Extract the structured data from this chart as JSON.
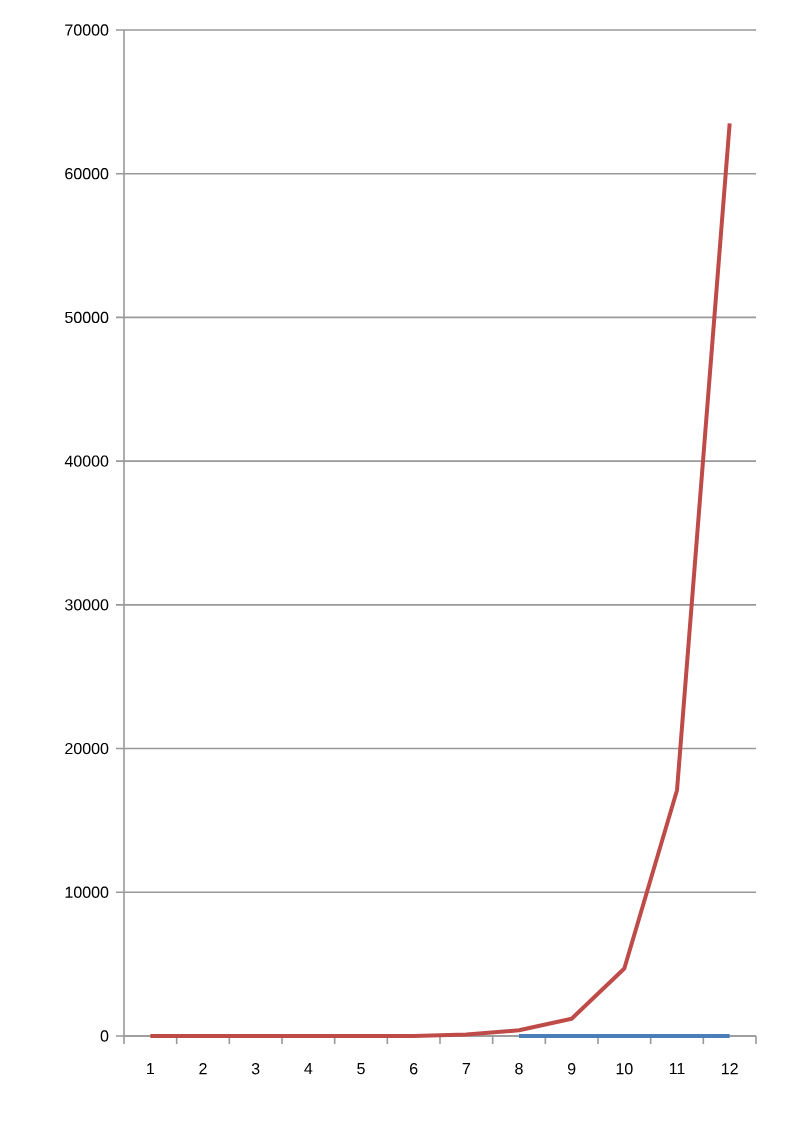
{
  "chart_data": {
    "type": "line",
    "categories": [
      "1",
      "2",
      "3",
      "4",
      "5",
      "6",
      "7",
      "8",
      "9",
      "10",
      "11",
      "12"
    ],
    "series": [
      {
        "color": "#4a7ebb",
        "values": [
          null,
          null,
          null,
          null,
          null,
          null,
          null,
          0,
          0,
          0,
          0,
          0
        ]
      },
      {
        "color": "#be4b48",
        "values": [
          0,
          0,
          0,
          0,
          0,
          0,
          100,
          400,
          1200,
          4700,
          17100,
          63500
        ]
      }
    ],
    "ylim": [
      0,
      70000
    ],
    "yticks": [
      0,
      10000,
      20000,
      30000,
      40000,
      50000,
      60000,
      70000
    ],
    "grid": "y",
    "marker": "none",
    "line_style": "solid"
  }
}
